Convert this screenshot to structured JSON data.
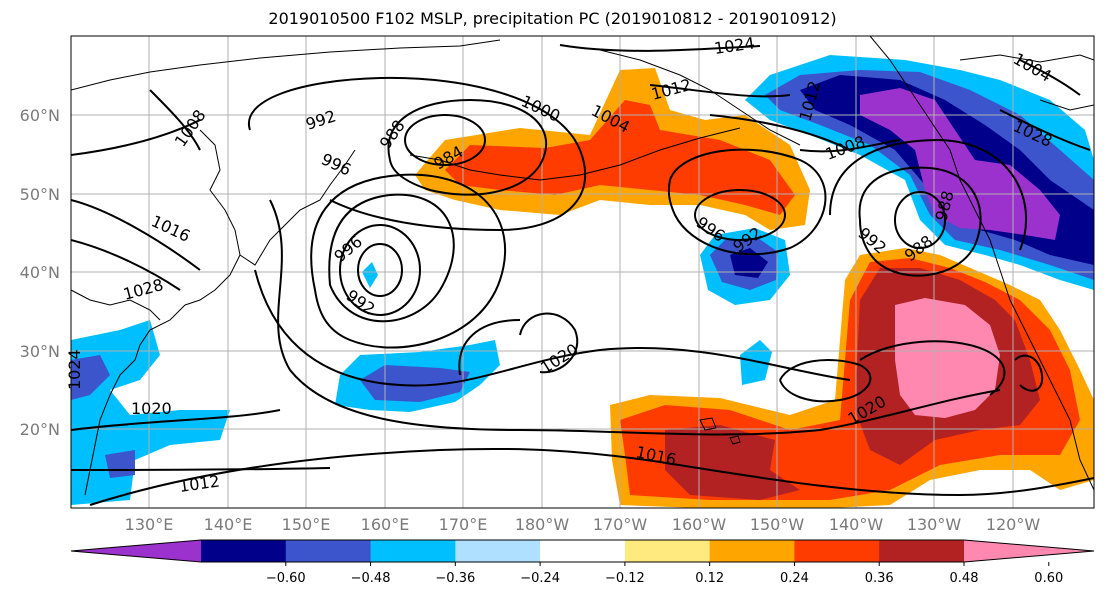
{
  "title": "2019010500 F102 MSLP, precipitation PC (2019010812 - 2019010912)",
  "lat_ticks": [
    "60°N",
    "50°N",
    "40°N",
    "30°N",
    "20°N"
  ],
  "lon_ticks": [
    "130°E",
    "140°E",
    "150°E",
    "160°E",
    "170°E",
    "180°W",
    "170°W",
    "160°W",
    "150°W",
    "140°W",
    "130°W",
    "120°W"
  ],
  "isobar_labels": [
    "1024",
    "1012",
    "1004",
    "1000",
    "992",
    "988",
    "984",
    "996",
    "1008",
    "1016",
    "996",
    "992",
    "1028",
    "1020",
    "1012",
    "1016",
    "1020",
    "996",
    "992",
    "988",
    "1008",
    "1028",
    "992",
    "988",
    "1020",
    "1012",
    "1024",
    "1004"
  ],
  "colorbar": {
    "ticks": [
      "−0.60",
      "−0.48",
      "−0.36",
      "−0.24",
      "−0.12",
      "0.12",
      "0.24",
      "0.36",
      "0.48",
      "0.60"
    ],
    "colors": [
      "#9b32cd",
      "#00008b",
      "#3c55cc",
      "#00bfff",
      "#b0e0ff",
      "#ffffff",
      "#ffea80",
      "#ffa500",
      "#ff3c00",
      "#b22222",
      "#ff88b0"
    ]
  }
}
